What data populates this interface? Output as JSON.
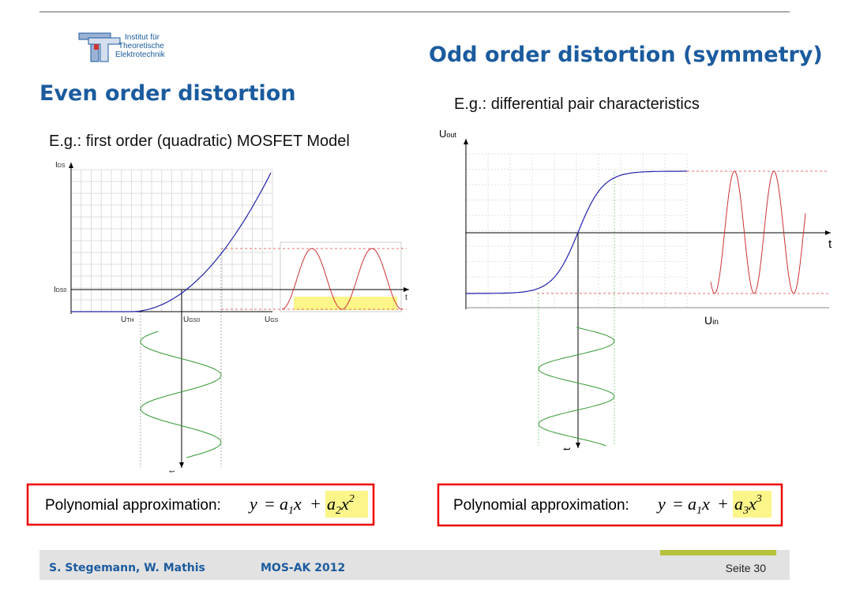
{
  "logo": {
    "line1": "Institut für",
    "line2": "Theoretische",
    "line3": "Elektrotechnik"
  },
  "left": {
    "title": "Even order distortion",
    "subtitle": "E.g.: first order (quadratic) MOSFET Model",
    "labels": {
      "ids": {
        "main": "I",
        "sub": "DS"
      },
      "ids0": {
        "main": "I",
        "sub": "DS0"
      },
      "uth": {
        "main": "U",
        "sub": "TH"
      },
      "ugs0": {
        "main": "U",
        "sub": "GS0"
      },
      "ugs": {
        "main": "U",
        "sub": "GS"
      },
      "t1": "t",
      "t2": "t"
    },
    "formula": {
      "label": "Polynomial approximation:",
      "lhs": "y",
      "eq": "=",
      "a1": "a",
      "i1": "1",
      "x1": "x",
      "plus": "+",
      "a2": "a",
      "i2": "2",
      "x2": "x",
      "p": "2"
    }
  },
  "right": {
    "title": "Odd order distortion (symmetry)",
    "subtitle": "E.g.: differential pair characteristics",
    "labels": {
      "uout": {
        "main": "U",
        "sub": "out"
      },
      "uin": {
        "main": "U",
        "sub": "in"
      },
      "t1": "t",
      "t2": "t"
    },
    "formula": {
      "label": "Polynomial approximation:",
      "lhs": "y",
      "eq": "=",
      "a1": "a",
      "i1": "1",
      "x1": "x",
      "plus": "+",
      "a3": "a",
      "i3": "3",
      "x3": "x",
      "p": "3"
    }
  },
  "footer": {
    "authors": "S. Stegemann,  W. Mathis",
    "event": "MOS-AK 2012",
    "page": "Seite 30"
  }
}
